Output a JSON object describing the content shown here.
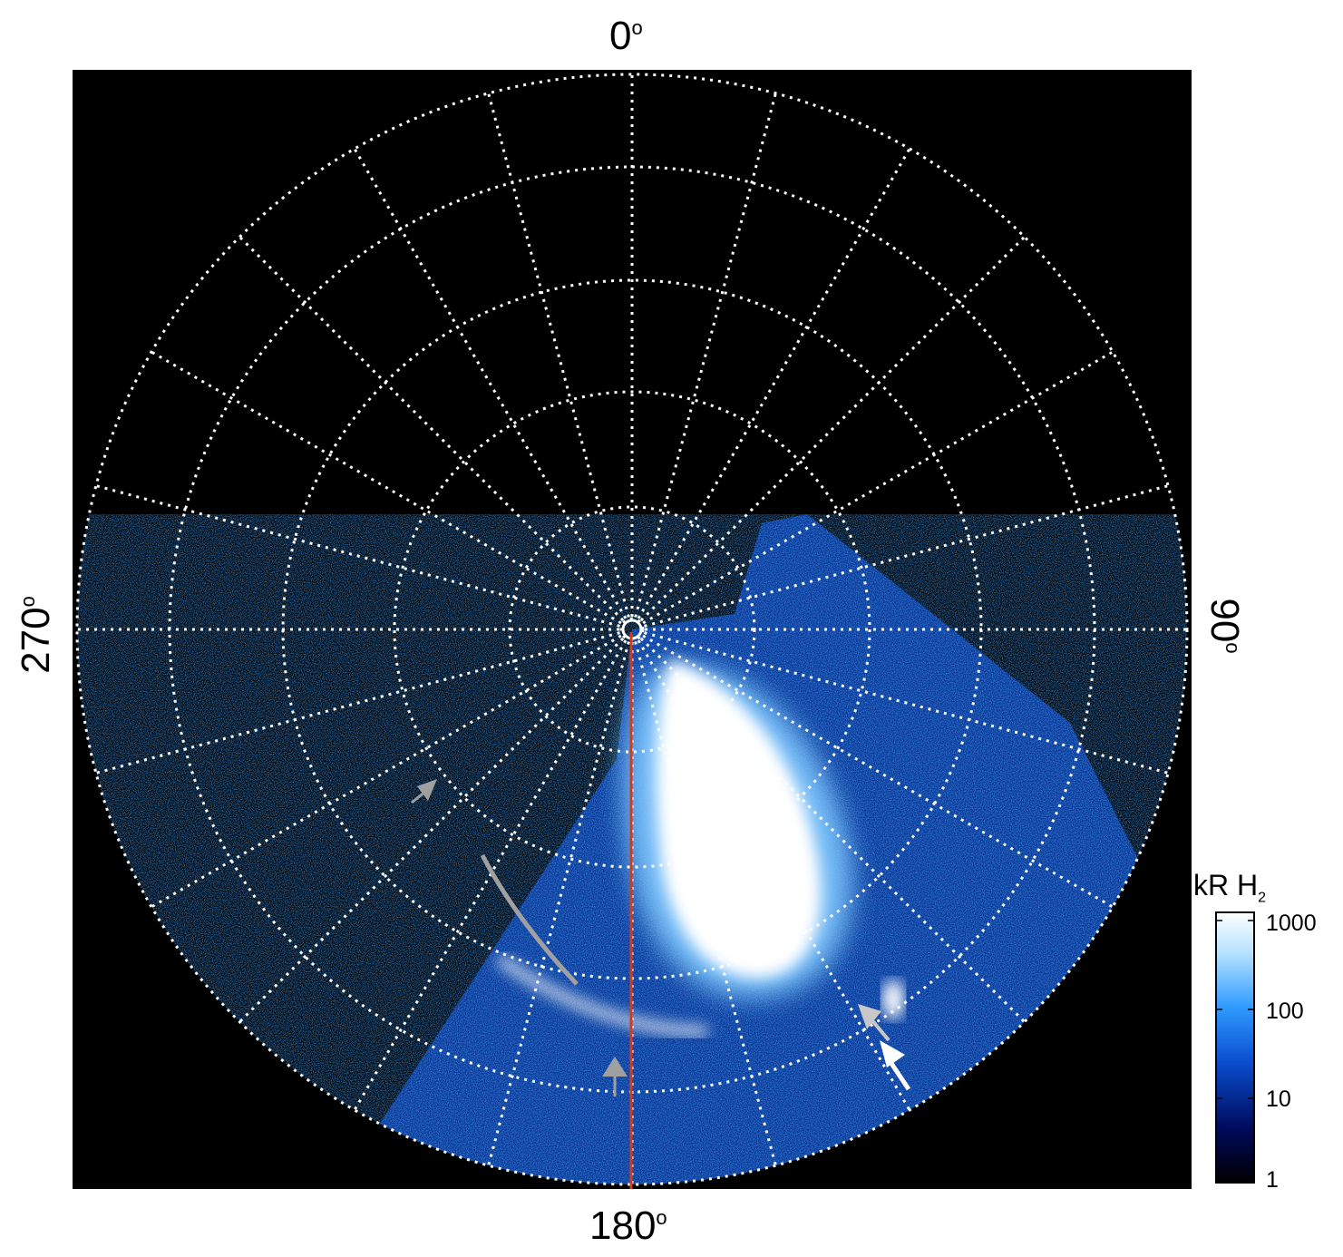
{
  "labels": {
    "top": "0",
    "bottom": "180",
    "left": "270",
    "right": "90",
    "degree_symbol": "o"
  },
  "colorbar": {
    "title_main": "kR H",
    "title_sub": "2",
    "ticks": [
      "1000",
      "100",
      "10",
      "1"
    ],
    "scale": "log",
    "range": [
      1,
      1000
    ],
    "colors": [
      "#000000",
      "#000a5c",
      "#0a4fd0",
      "#2f9bff",
      "#b6e2ff",
      "#ffffff"
    ]
  },
  "colors": {
    "grid": "#ffffff",
    "meridian_line": "#d23c1a",
    "gray_arrow": "#a0a0a0",
    "white_arrow": "#ffffff",
    "background": "#000000"
  }
}
